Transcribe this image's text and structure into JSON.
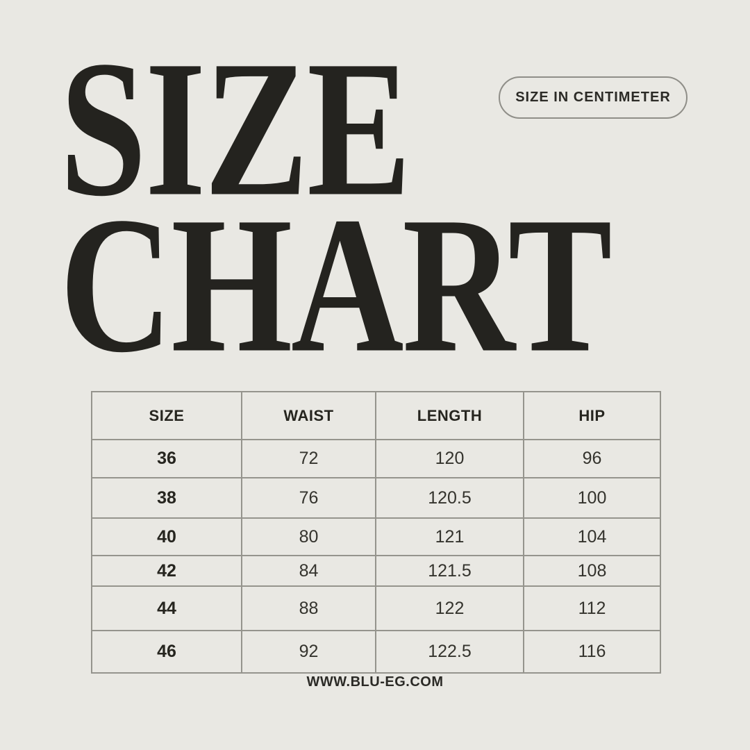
{
  "page": {
    "background_color": "#e9e8e3",
    "text_color": "#24231f",
    "border_color": "#95948d"
  },
  "title": {
    "line1": "SIZE",
    "line2": "CHART"
  },
  "badge": {
    "label": "SIZE IN CENTIMETER"
  },
  "footer": {
    "website": "WWW.BLU-EG.COM"
  },
  "chart_data": {
    "type": "table",
    "title": "SIZE CHART",
    "unit": "centimeter",
    "columns": [
      "SIZE",
      "WAIST",
      "LENGTH",
      "HIP"
    ],
    "rows": [
      [
        "36",
        "72",
        "120",
        "96"
      ],
      [
        "38",
        "76",
        "120.5",
        "100"
      ],
      [
        "40",
        "80",
        "121",
        "104"
      ],
      [
        "42",
        "84",
        "121.5",
        "108"
      ],
      [
        "44",
        "88",
        "122",
        "112"
      ],
      [
        "46",
        "92",
        "122.5",
        "116"
      ]
    ]
  }
}
